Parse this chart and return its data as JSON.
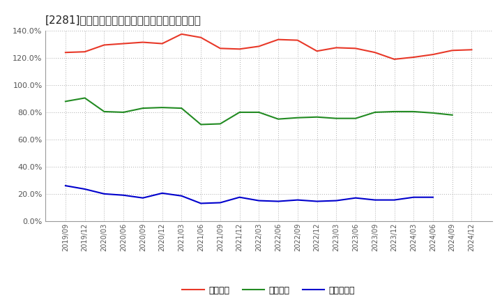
{
  "title": "[2281]　流動比率、当座比率、現預金比率の推移",
  "x_labels": [
    "2019/09",
    "2019/12",
    "2020/03",
    "2020/06",
    "2020/09",
    "2020/12",
    "2021/03",
    "2021/06",
    "2021/09",
    "2021/12",
    "2022/03",
    "2022/06",
    "2022/09",
    "2022/12",
    "2023/03",
    "2023/06",
    "2023/09",
    "2023/12",
    "2024/03",
    "2024/06",
    "2024/09",
    "2024/12"
  ],
  "ryudo": [
    124.0,
    124.5,
    129.5,
    130.5,
    131.5,
    130.5,
    137.5,
    135.0,
    127.0,
    126.5,
    128.5,
    133.5,
    133.0,
    125.0,
    127.5,
    127.0,
    124.0,
    119.0,
    120.5,
    122.5,
    125.5,
    126.0
  ],
  "toza": [
    88.0,
    90.5,
    80.5,
    80.0,
    83.0,
    83.5,
    83.0,
    71.0,
    71.5,
    80.0,
    80.0,
    75.0,
    76.0,
    76.5,
    75.5,
    75.5,
    80.0,
    80.5,
    80.5,
    79.5,
    78.0,
    null
  ],
  "genkin": [
    26.0,
    23.5,
    20.0,
    19.0,
    17.0,
    20.5,
    18.5,
    13.0,
    13.5,
    17.5,
    15.0,
    14.5,
    15.5,
    14.5,
    15.0,
    17.0,
    15.5,
    15.5,
    17.5,
    17.5,
    null,
    null
  ],
  "ryudo_color": "#e83828",
  "toza_color": "#228b22",
  "genkin_color": "#0000cd",
  "legend_label_ryudo": "流動比率",
  "legend_label_toza": "当座比率",
  "legend_label_genkin": "現預金比率",
  "ylim_min": 0,
  "ylim_max": 140,
  "yticks": [
    0,
    20,
    40,
    60,
    80,
    100,
    120,
    140
  ],
  "background_color": "#ffffff",
  "grid_color": "#aaaaaa",
  "tick_color": "#555555"
}
